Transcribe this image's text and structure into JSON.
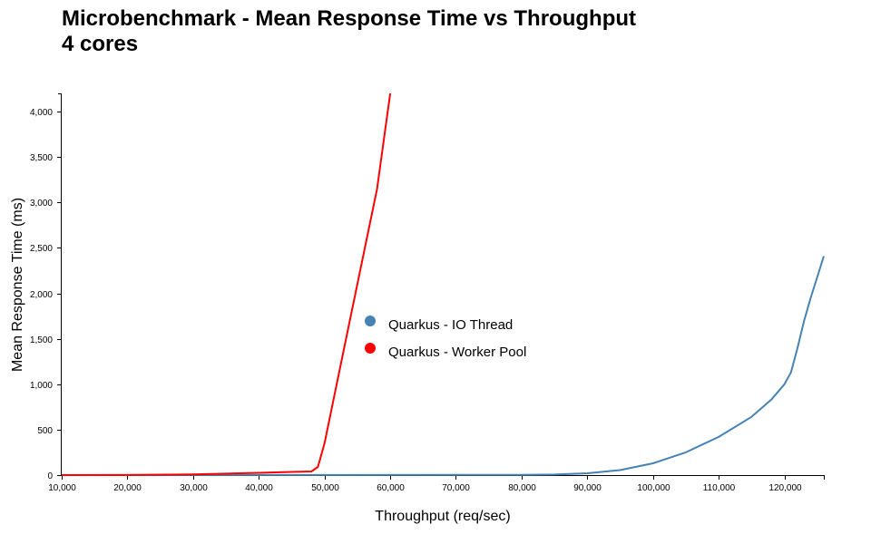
{
  "chart_data": {
    "type": "line",
    "title": "Microbenchmark - Mean Response Time vs Throughput",
    "subtitle": "4 cores",
    "xlabel": "Throughput (req/sec)",
    "ylabel": "Mean Response Time (ms)",
    "xlim": [
      10000,
      126000
    ],
    "ylim": [
      0,
      4200
    ],
    "x_ticks": [
      "10,000",
      "20,000",
      "30,000",
      "40,000",
      "50,000",
      "60,000",
      "70,000",
      "80,000",
      "90,000",
      "100,000",
      "110,000",
      "120,000"
    ],
    "y_ticks": [
      "0",
      "500",
      "1,000",
      "1,500",
      "2,000",
      "2,500",
      "3,000",
      "3,500",
      "4,000"
    ],
    "legend_position": "center",
    "series": [
      {
        "name": "Quarkus - IO Thread",
        "color": "#4682b4",
        "points": [
          [
            10000,
            0
          ],
          [
            50000,
            1
          ],
          [
            80000,
            3
          ],
          [
            85000,
            6
          ],
          [
            90000,
            20
          ],
          [
            95000,
            55
          ],
          [
            100000,
            130
          ],
          [
            105000,
            250
          ],
          [
            110000,
            420
          ],
          [
            115000,
            640
          ],
          [
            118000,
            830
          ],
          [
            120000,
            1000
          ],
          [
            121000,
            1130
          ],
          [
            122000,
            1400
          ],
          [
            123000,
            1700
          ],
          [
            124000,
            1950
          ],
          [
            125000,
            2180
          ],
          [
            126000,
            2410
          ]
        ]
      },
      {
        "name": "Quarkus - Worker Pool",
        "color": "#ff0000",
        "points": [
          [
            10000,
            0
          ],
          [
            20000,
            1
          ],
          [
            30000,
            8
          ],
          [
            40000,
            25
          ],
          [
            45000,
            35
          ],
          [
            48000,
            40
          ],
          [
            49000,
            90
          ],
          [
            50000,
            350
          ],
          [
            52000,
            1050
          ],
          [
            54000,
            1750
          ],
          [
            56000,
            2450
          ],
          [
            58000,
            3150
          ],
          [
            60000,
            4200
          ]
        ]
      }
    ]
  }
}
